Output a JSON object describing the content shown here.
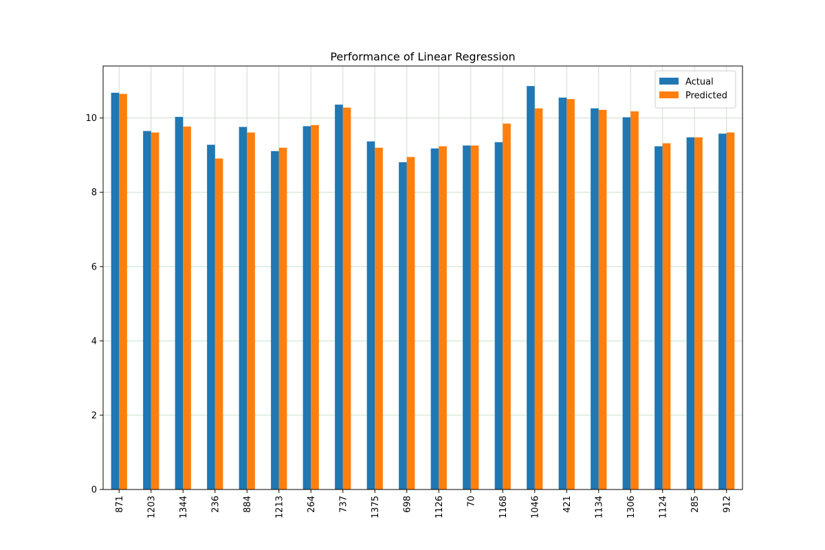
{
  "chart_data": {
    "type": "bar",
    "title": "Performance of Linear Regression",
    "xlabel": "",
    "ylabel": "",
    "categories": [
      "871",
      "1203",
      "1344",
      "236",
      "884",
      "1213",
      "264",
      "737",
      "1375",
      "698",
      "1126",
      "70",
      "1168",
      "1046",
      "421",
      "1134",
      "1306",
      "1124",
      "285",
      "912"
    ],
    "series": [
      {
        "name": "Actual",
        "color": "#1f77b4",
        "values": [
          10.68,
          9.65,
          10.03,
          9.28,
          9.76,
          9.11,
          9.78,
          10.36,
          9.37,
          8.81,
          9.18,
          9.26,
          9.35,
          10.86,
          10.55,
          10.26,
          10.02,
          9.24,
          9.48,
          9.58
        ]
      },
      {
        "name": "Predicted",
        "color": "#ff7f0e",
        "values": [
          10.65,
          9.61,
          9.77,
          8.91,
          9.61,
          9.2,
          9.81,
          10.28,
          9.2,
          8.95,
          9.24,
          9.26,
          9.85,
          10.26,
          10.51,
          10.22,
          10.18,
          9.32,
          9.48,
          9.61
        ]
      }
    ],
    "ylim": [
      0,
      11.4
    ],
    "yticks": [
      0,
      2,
      4,
      6,
      8,
      10
    ],
    "grid": true,
    "grid_color": "#c8e0c8",
    "legend_position": "top-right"
  }
}
